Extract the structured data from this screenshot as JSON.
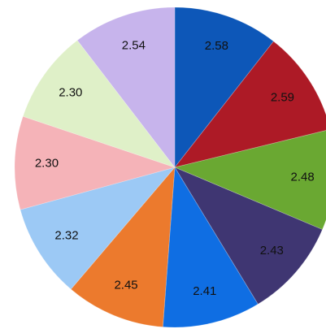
{
  "chart_data": {
    "type": "pie",
    "categories": [
      "",
      "",
      "",
      "",
      "",
      "",
      "",
      "",
      "",
      ""
    ],
    "values": [
      2.58,
      2.59,
      2.48,
      2.43,
      2.41,
      2.45,
      2.32,
      2.3,
      2.3,
      2.54
    ],
    "labels": [
      "2.58",
      "2.59",
      "2.48",
      "2.43",
      "2.41",
      "2.45",
      "2.32",
      "2.30",
      "2.30",
      "2.54"
    ],
    "colors": [
      "#0d57b8",
      "#ad1a26",
      "#6aa832",
      "#3f3672",
      "#0f6ee3",
      "#ec7a2d",
      "#9cc9f5",
      "#f5b3b8",
      "#dff0c8",
      "#c7b4ec"
    ],
    "start_angle_deg": 0,
    "direction": "clockwise",
    "title": "",
    "legend": "none"
  }
}
